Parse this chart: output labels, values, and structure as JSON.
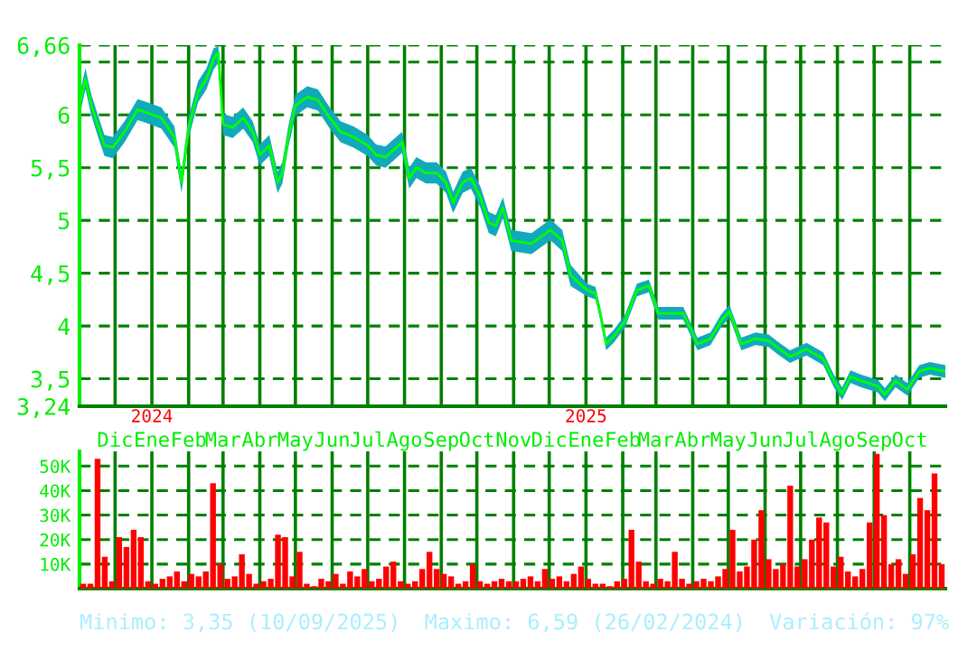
{
  "chart_data": [
    {
      "type": "line",
      "x": [
        "2023-11-02",
        "2023-11-06",
        "2023-11-11",
        "2023-11-17",
        "2023-11-22",
        "2023-11-29",
        "2023-12-09",
        "2023-12-20",
        "2023-12-28",
        "2024-01-09",
        "2024-01-20",
        "2024-01-26",
        "2024-02-01",
        "2024-02-09",
        "2024-02-16",
        "2024-02-22",
        "2024-02-26",
        "2024-03-01",
        "2024-03-09",
        "2024-03-18",
        "2024-03-26",
        "2024-04-01",
        "2024-04-09",
        "2024-04-16",
        "2024-04-20",
        "2024-04-25",
        "2024-05-01",
        "2024-05-11",
        "2024-05-20",
        "2024-05-30",
        "2024-06-08",
        "2024-06-19",
        "2024-07-01",
        "2024-07-08",
        "2024-07-16",
        "2024-07-23",
        "2024-07-30",
        "2024-08-05",
        "2024-08-11",
        "2024-08-19",
        "2024-08-28",
        "2024-09-05",
        "2024-09-11",
        "2024-09-19",
        "2024-09-26",
        "2024-10-04",
        "2024-10-11",
        "2024-10-17",
        "2024-10-23",
        "2024-10-30",
        "2024-11-16",
        "2024-12-02",
        "2024-12-12",
        "2024-12-19",
        "2025-01-02",
        "2025-01-09",
        "2025-01-13",
        "2025-01-18",
        "2025-01-25",
        "2025-02-03",
        "2025-02-13",
        "2025-02-23",
        "2025-03-03",
        "2025-03-14",
        "2025-03-24",
        "2025-04-05",
        "2025-04-16",
        "2025-04-25",
        "2025-05-02",
        "2025-05-12",
        "2025-05-24",
        "2025-06-04",
        "2025-06-12",
        "2025-06-22",
        "2025-07-06",
        "2025-07-20",
        "2025-07-29",
        "2025-08-05",
        "2025-08-12",
        "2025-08-21",
        "2025-09-04",
        "2025-09-10",
        "2025-09-19",
        "2025-09-29",
        "2025-10-09",
        "2025-10-18",
        "2025-10-31"
      ],
      "series": [
        {
          "color": "#00ff00",
          "values": [
            6.14,
            6.34,
            6.09,
            5.88,
            5.71,
            5.69,
            5.84,
            6.05,
            6.02,
            5.97,
            5.79,
            5.36,
            5.88,
            6.22,
            6.34,
            6.53,
            6.59,
            5.91,
            5.88,
            5.97,
            5.84,
            5.62,
            5.71,
            5.36,
            5.45,
            5.79,
            6.09,
            6.17,
            6.14,
            5.97,
            5.84,
            5.79,
            5.71,
            5.62,
            5.6,
            5.67,
            5.74,
            5.4,
            5.5,
            5.45,
            5.45,
            5.36,
            5.17,
            5.36,
            5.4,
            5.22,
            4.98,
            4.95,
            5.12,
            4.81,
            4.78,
            4.91,
            4.81,
            4.48,
            4.34,
            4.31,
            4.12,
            3.83,
            3.91,
            4.05,
            4.34,
            4.38,
            4.12,
            4.12,
            4.12,
            3.83,
            3.88,
            4.05,
            4.14,
            3.83,
            3.88,
            3.86,
            3.79,
            3.71,
            3.78,
            3.69,
            3.48,
            3.36,
            3.52,
            3.48,
            3.43,
            3.35,
            3.48,
            3.4,
            3.57,
            3.6,
            3.57
          ],
          "lower": [
            6.04,
            6.24,
            5.99,
            5.78,
            5.61,
            5.59,
            5.74,
            5.95,
            5.92,
            5.87,
            5.69,
            5.26,
            5.78,
            6.12,
            6.24,
            6.43,
            6.49,
            5.81,
            5.78,
            5.87,
            5.74,
            5.52,
            5.61,
            5.26,
            5.35,
            5.69,
            5.99,
            6.07,
            6.04,
            5.87,
            5.74,
            5.69,
            5.61,
            5.52,
            5.5,
            5.57,
            5.64,
            5.3,
            5.4,
            5.35,
            5.35,
            5.26,
            5.07,
            5.26,
            5.3,
            5.12,
            4.88,
            4.85,
            5.02,
            4.71,
            4.68,
            4.81,
            4.71,
            4.38,
            4.28,
            4.25,
            4.06,
            3.77,
            3.85,
            3.99,
            4.28,
            4.32,
            4.06,
            4.06,
            4.06,
            3.77,
            3.82,
            3.99,
            4.08,
            3.77,
            3.82,
            3.8,
            3.73,
            3.65,
            3.72,
            3.63,
            3.42,
            3.3,
            3.46,
            3.42,
            3.37,
            3.29,
            3.42,
            3.34,
            3.51,
            3.54,
            3.51
          ],
          "upper": [
            6.24,
            6.44,
            6.19,
            5.98,
            5.81,
            5.79,
            5.94,
            6.15,
            6.12,
            6.07,
            5.89,
            5.46,
            5.98,
            6.32,
            6.44,
            6.63,
            6.65,
            6.01,
            5.98,
            6.07,
            5.94,
            5.72,
            5.81,
            5.46,
            5.55,
            5.89,
            6.19,
            6.27,
            6.24,
            6.07,
            5.94,
            5.89,
            5.81,
            5.72,
            5.7,
            5.77,
            5.84,
            5.5,
            5.6,
            5.55,
            5.55,
            5.46,
            5.27,
            5.46,
            5.5,
            5.32,
            5.08,
            5.05,
            5.22,
            4.91,
            4.88,
            5.01,
            4.91,
            4.58,
            4.4,
            4.37,
            4.18,
            3.89,
            3.97,
            4.11,
            4.4,
            4.44,
            4.18,
            4.18,
            4.18,
            3.89,
            3.94,
            4.11,
            4.2,
            3.89,
            3.94,
            3.92,
            3.85,
            3.77,
            3.84,
            3.75,
            3.54,
            3.42,
            3.58,
            3.54,
            3.49,
            3.41,
            3.54,
            3.46,
            3.63,
            3.66,
            3.63
          ]
        }
      ],
      "xlim": [
        "2023-11-01",
        "2025-10-31"
      ],
      "xticks": [
        {
          "value": "2023-12-01",
          "label": "Dic"
        },
        {
          "value": "2024-01-01",
          "label": "Ene"
        },
        {
          "value": "2024-02-01",
          "label": "Feb"
        },
        {
          "value": "2024-03-01",
          "label": "Mar"
        },
        {
          "value": "2024-04-01",
          "label": "Abr"
        },
        {
          "value": "2024-05-01",
          "label": "May"
        },
        {
          "value": "2024-06-01",
          "label": "Jun"
        },
        {
          "value": "2024-07-01",
          "label": "Jul"
        },
        {
          "value": "2024-08-01",
          "label": "Ago"
        },
        {
          "value": "2024-09-01",
          "label": "Sep"
        },
        {
          "value": "2024-10-01",
          "label": "Oct"
        },
        {
          "value": "2024-11-01",
          "label": "Nov"
        },
        {
          "value": "2024-12-01",
          "label": "Dic"
        },
        {
          "value": "2025-01-01",
          "label": "Ene"
        },
        {
          "value": "2025-02-01",
          "label": "Feb"
        },
        {
          "value": "2025-03-01",
          "label": "Mar"
        },
        {
          "value": "2025-04-01",
          "label": "Abr"
        },
        {
          "value": "2025-05-01",
          "label": "May"
        },
        {
          "value": "2025-06-01",
          "label": "Jun"
        },
        {
          "value": "2025-07-01",
          "label": "Jul"
        },
        {
          "value": "2025-08-01",
          "label": "Ago"
        },
        {
          "value": "2025-09-01",
          "label": "Sep"
        },
        {
          "value": "2025-10-01",
          "label": "Oct"
        }
      ],
      "ylim": [
        3.24,
        6.66
      ],
      "yticks": [
        {
          "value": 3.24,
          "label": "3,24"
        },
        {
          "value": 3.5,
          "label": "3,5"
        },
        4,
        {
          "value": 4.5,
          "label": "4,5"
        },
        5,
        {
          "value": 5.5,
          "label": "5,5"
        },
        6,
        {
          "value": 6.5,
          "label": null
        },
        {
          "value": 6.66,
          "label": "6,66"
        }
      ],
      "grid": true,
      "marker": "none",
      "x2lim": [
        "2023-11-01",
        "2025-10-31"
      ],
      "x2ticks": [
        {
          "value": "2024-01-01",
          "label": "2024"
        },
        {
          "value": "2025-01-01",
          "label": "2025"
        }
      ],
      "annotations": [
        "Minimo: 3,35 (10/09/2025)",
        "Maximo: 6,59 (26/02/2024)",
        "Variación: 97%"
      ]
    },
    {
      "type": "bar",
      "categories": [
        null,
        null,
        null,
        null,
        null,
        null,
        null,
        null,
        null,
        null,
        null,
        null,
        null,
        null,
        null,
        null,
        null,
        null,
        null,
        null,
        null,
        null,
        null,
        null,
        null,
        null,
        null,
        null,
        null,
        null,
        null,
        null,
        null,
        null,
        null,
        null,
        null,
        null,
        null,
        null,
        null,
        null,
        null,
        null,
        null,
        null,
        null,
        null,
        null,
        null,
        null,
        null,
        null,
        null,
        null,
        null,
        null,
        null,
        null,
        null,
        null,
        null,
        null,
        null,
        null,
        null,
        null,
        null,
        null,
        null,
        null,
        null,
        null,
        null,
        null,
        null,
        null,
        null,
        null,
        null,
        null,
        null,
        null,
        null,
        null,
        null,
        null,
        null,
        null,
        null,
        null,
        null,
        null,
        null,
        null,
        null,
        null,
        null,
        null,
        null,
        null,
        null,
        null,
        null,
        null,
        null,
        null,
        null,
        null,
        null,
        null,
        null,
        null,
        null,
        null,
        null,
        null,
        null,
        null,
        null
      ],
      "values": [
        2000,
        2000,
        53000,
        13000,
        3000,
        21000,
        17000,
        24000,
        21000,
        3000,
        2000,
        4000,
        5000,
        7000,
        3000,
        6000,
        5000,
        7000,
        43000,
        10000,
        4000,
        5000,
        14000,
        6000,
        2000,
        3000,
        4000,
        22000,
        21000,
        5000,
        15000,
        2000,
        1000,
        4000,
        3000,
        6000,
        2000,
        7000,
        5000,
        8000,
        3000,
        4000,
        9000,
        11000,
        3000,
        2000,
        3000,
        8000,
        15000,
        8000,
        6000,
        5000,
        2000,
        3000,
        10000,
        3000,
        2000,
        3000,
        4000,
        3000,
        3000,
        4000,
        5000,
        3000,
        8000,
        4000,
        5000,
        3000,
        6000,
        9000,
        4000,
        2000,
        2000,
        1000,
        3000,
        4000,
        24000,
        11000,
        3000,
        2000,
        4000,
        3000,
        15000,
        4000,
        2000,
        3000,
        4000,
        3000,
        5000,
        8000,
        24000,
        7000,
        9000,
        20000,
        32000,
        12000,
        8000,
        10000,
        42000,
        9000,
        12000,
        20000,
        29000,
        27000,
        9000,
        13000,
        7000,
        5000,
        8000,
        27000,
        55000,
        30000,
        10000,
        12000,
        6000,
        14000,
        37000,
        32000,
        47000,
        10000
      ],
      "color": "#ff0000",
      "ylim": [
        0,
        56000
      ],
      "yticks": [
        {
          "value": 10000,
          "label": "10K"
        },
        {
          "value": 20000,
          "label": "20K"
        },
        {
          "value": 30000,
          "label": "30K"
        },
        {
          "value": 40000,
          "label": "40K"
        },
        {
          "value": 50000,
          "label": "50K"
        }
      ],
      "grid": true,
      "tick_labels": "y"
    }
  ]
}
